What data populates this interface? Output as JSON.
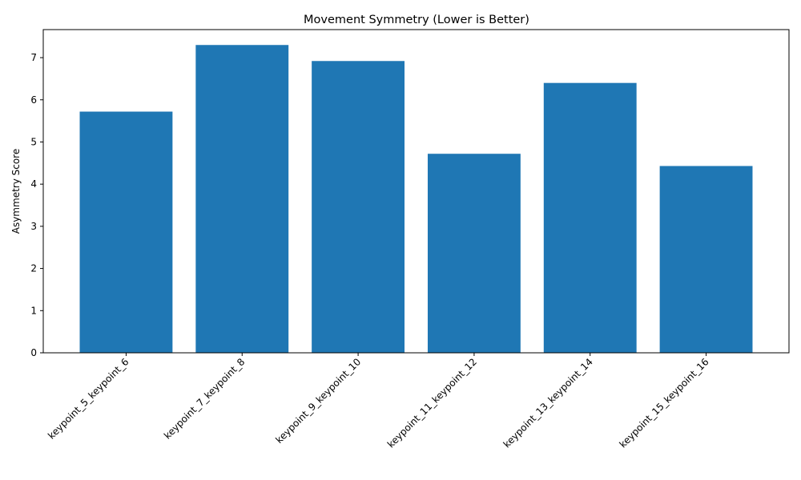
{
  "chart_data": {
    "type": "bar",
    "title": "Movement Symmetry (Lower is Better)",
    "xlabel": "",
    "ylabel": "Asymmetry Score",
    "categories": [
      "keypoint_5_keypoint_6",
      "keypoint_7_keypoint_8",
      "keypoint_9_keypoint_10",
      "keypoint_11_keypoint_12",
      "keypoint_13_keypoint_14",
      "keypoint_15_keypoint_16"
    ],
    "values": [
      5.72,
      7.3,
      6.92,
      4.72,
      6.4,
      4.43
    ],
    "ylim": [
      0,
      7.665
    ],
    "yticks": [
      0,
      1,
      2,
      3,
      4,
      5,
      6,
      7
    ],
    "bar_color": "#1f77b4",
    "grid": false,
    "legend": "none"
  }
}
